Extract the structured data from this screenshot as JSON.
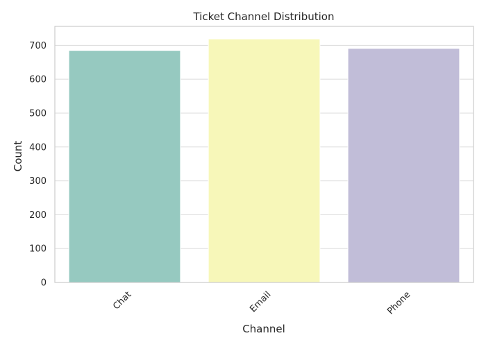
{
  "chart_data": {
    "type": "bar",
    "title": "Ticket Channel Distribution",
    "xlabel": "Channel",
    "ylabel": "Count",
    "categories": [
      "Chat",
      "Email",
      "Phone"
    ],
    "values": [
      685,
      719,
      691
    ],
    "colors": [
      "#96c9c0",
      "#f7f7b9",
      "#c1bdd8"
    ],
    "ylim": [
      0,
      756
    ],
    "yticks": [
      0,
      100,
      200,
      300,
      400,
      500,
      600,
      700
    ],
    "grid": true,
    "xtick_rotation": -45
  }
}
